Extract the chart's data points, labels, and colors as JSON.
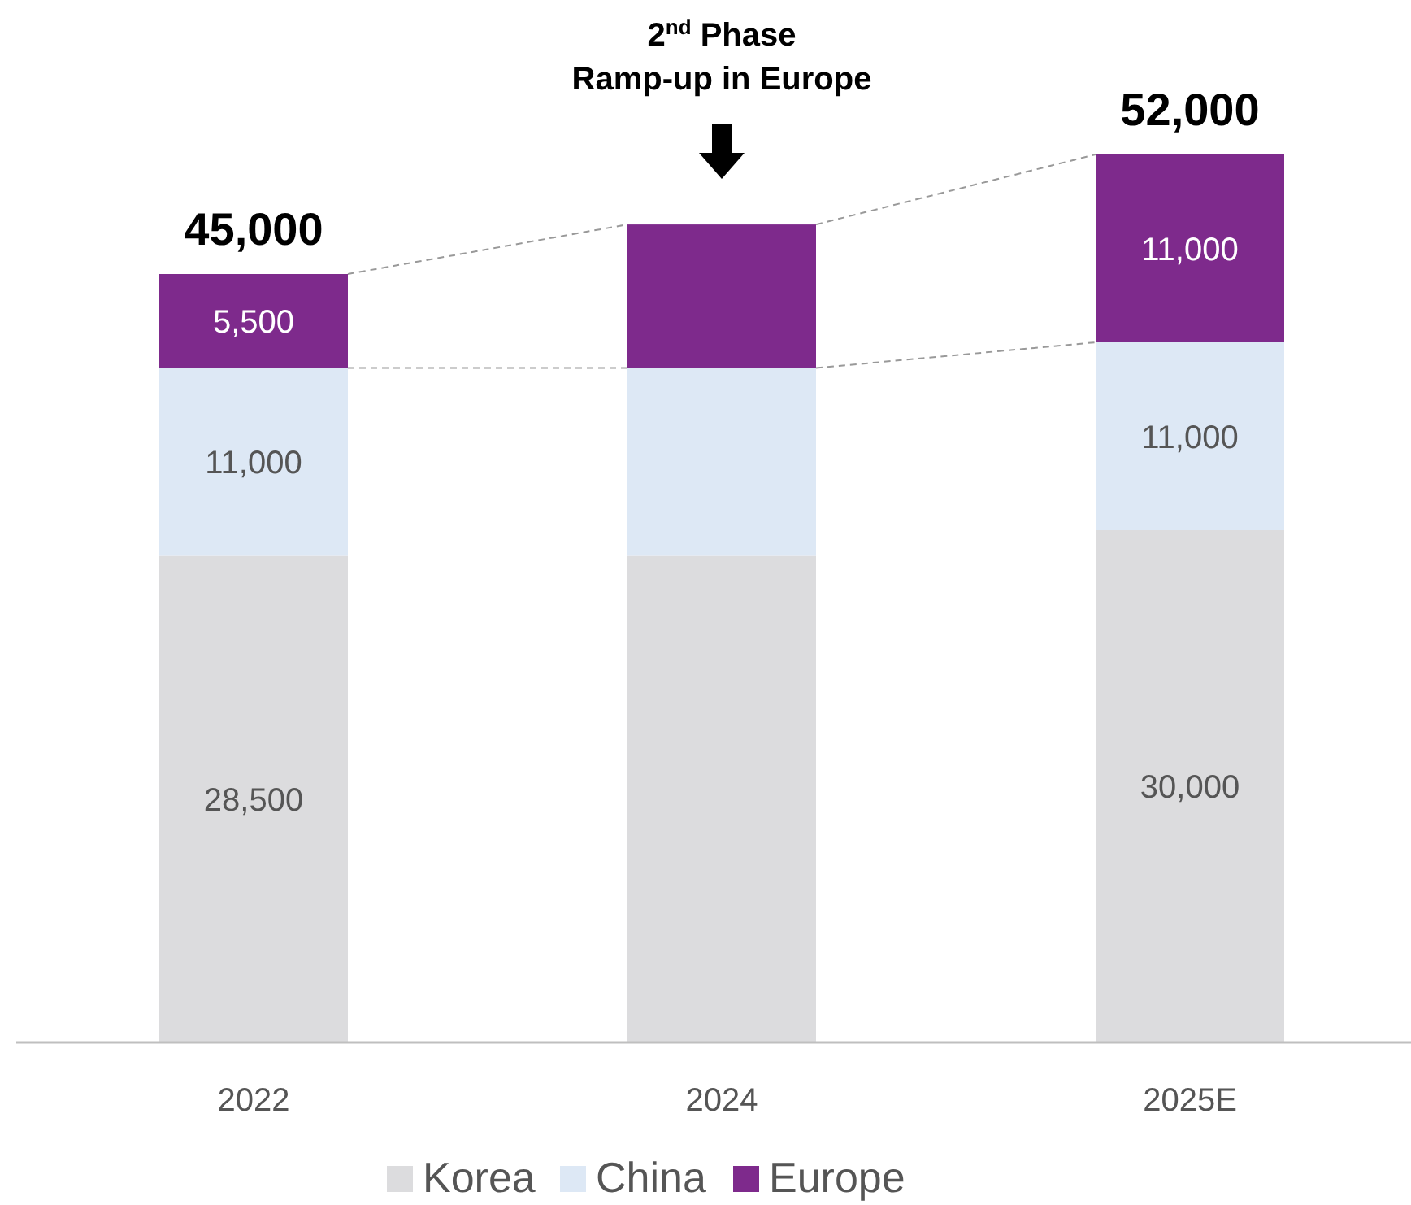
{
  "chart_data": {
    "type": "bar",
    "stacked": true,
    "categories": [
      "2022",
      "2024",
      "2025E"
    ],
    "series": [
      {
        "name": "Korea",
        "color": "#dcdcde",
        "values": [
          28500,
          28500,
          30000
        ],
        "value_labels": [
          "28,500",
          null,
          "30,000"
        ]
      },
      {
        "name": "China",
        "color": "#dde8f5",
        "values": [
          11000,
          11000,
          11000
        ],
        "value_labels": [
          "11,000",
          null,
          "11,000"
        ]
      },
      {
        "name": "Europe",
        "color": "#7e2a8c",
        "values": [
          5500,
          8400,
          11000
        ],
        "value_labels": [
          "5,500",
          null,
          "11,000"
        ]
      }
    ],
    "totals": [
      "45,000",
      null,
      "52,000"
    ],
    "annotations": [
      "2$^{nd}$ Phase\nRamp-up in Europe"
    ],
    "legend": "bottom"
  }
}
